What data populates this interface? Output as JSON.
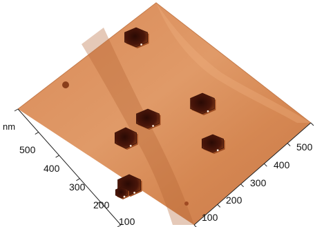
{
  "image": {
    "kind": "AFM topography 3D surface",
    "colors": {
      "surface_light": "#e6a070",
      "surface_mid": "#cf8251",
      "surface_dark": "#a65a2c",
      "pit": "#3a1208",
      "axis": "#222222"
    }
  },
  "axes": {
    "left": {
      "unit": "nm",
      "ticks": [
        "500",
        "400",
        "300",
        "200",
        "100"
      ]
    },
    "right": {
      "ticks": [
        "100",
        "200",
        "300",
        "400",
        "500"
      ]
    }
  },
  "surface": {
    "pit_count": 7,
    "grain_count": 1
  }
}
